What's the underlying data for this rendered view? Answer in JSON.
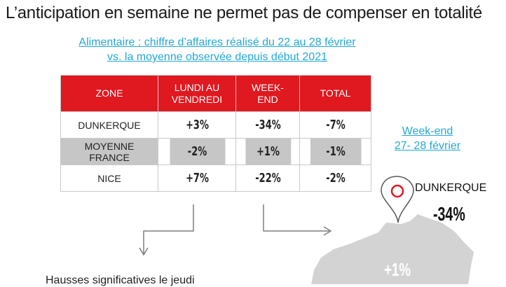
{
  "title": "L’anticipation en semaine ne permet pas de compenser en totalité",
  "subtitle": {
    "line1": "Alimentaire : chiffre d’affaires réalisé du 22 au 28 février",
    "line2": "vs. la moyenne  observée depuis début 2021"
  },
  "table": {
    "headers": [
      "ZONE",
      "LUNDI AU VENDREDI",
      "WEEK-END",
      "TOTAL"
    ],
    "rows": [
      {
        "zone": "DUNKERQUE",
        "weekday": "+3%",
        "weekend": "-34%",
        "total": "-7%"
      },
      {
        "zone": "MOYENNE FRANCE",
        "weekday": "-2%",
        "weekend": "+1%",
        "total": "-1%"
      },
      {
        "zone": "NICE",
        "weekday": "+7%",
        "weekend": "-22%",
        "total": "-2%"
      }
    ]
  },
  "weekend_box": {
    "line1": "Week-end",
    "line2": "27- 28 février"
  },
  "map": {
    "pin_label": "DUNKERQUE",
    "pin_value": "-34%",
    "france_value": "+1%",
    "colors": {
      "pin": "#e0181f",
      "map": "#d3d3d3"
    }
  },
  "bottom_text": "Hausses significatives le jeudi",
  "colors": {
    "header": "#e0181f",
    "link": "#22a9d6",
    "gray_row": "#c6c6c6"
  }
}
